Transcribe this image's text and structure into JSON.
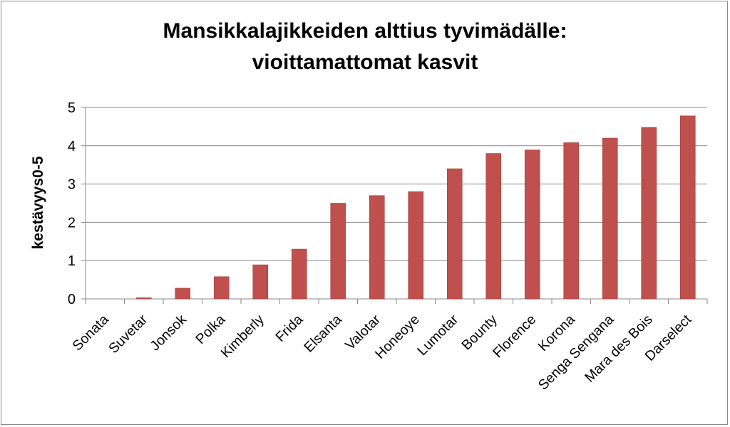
{
  "chart_data": {
    "type": "bar",
    "title_lines": [
      "Mansikkalajikkeiden alttius tyvimädälle:",
      "vioittamattomat kasvit"
    ],
    "xlabel": "",
    "ylabel": "kestävyys0-5",
    "ylim": [
      0,
      5
    ],
    "yticks": [
      "0",
      "1",
      "2",
      "3",
      "4",
      "5"
    ],
    "grid": true,
    "legend": "none",
    "bar_color": "#c0504d",
    "categories": [
      "Sonata",
      "Suvetar",
      "Jonsok",
      "Polka",
      "Kimberly",
      "Frida",
      "Elsanta",
      "Valotar",
      "Honeoye",
      "Lumotar",
      "Bounty",
      "Florence",
      "Korona",
      "Senga Sengana",
      "Mara des Bois",
      "Darselect"
    ],
    "values": [
      0,
      0.03,
      0.28,
      0.58,
      0.89,
      1.3,
      2.5,
      2.7,
      2.8,
      3.4,
      3.8,
      3.89,
      4.08,
      4.2,
      4.48,
      4.78
    ]
  }
}
